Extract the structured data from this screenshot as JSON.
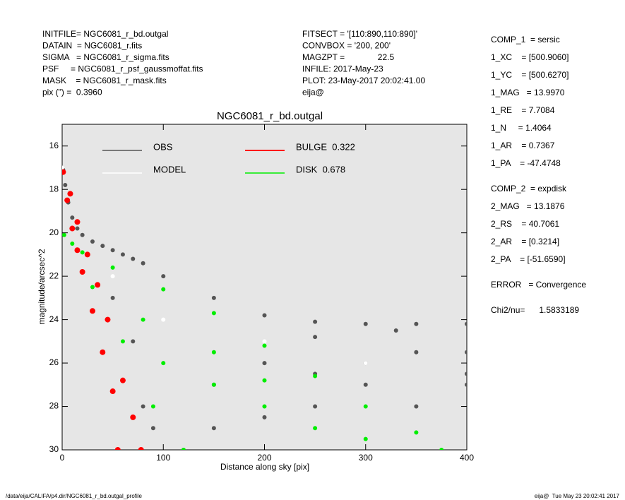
{
  "header": {
    "left": [
      "INITFILE= NGC6081_r_bd.outgal",
      "DATAIN  = NGC6081_r.fits",
      "SIGMA   = NGC6081_r_sigma.fits",
      "PSF     = NGC6081_r_psf_gaussmoffat.fits",
      "MASK    = NGC6081_r_mask.fits",
      "pix (\") =  0.3960"
    ],
    "middle": [
      "FITSECT = '[110:890,110:890]'",
      "CONVBOX = '200, 200'",
      "MAGZPT =              22.5",
      "INFILE: 2017-May-23",
      "PLOT: 23-May-2017 20:02:41.00",
      "eija@"
    ],
    "right": [
      [
        "COMP_1  = sersic",
        "1_XC    = [500.9060]",
        "1_YC    = [500.6270]",
        "1_MAG   = 13.9970",
        "1_RE    = 7.7084",
        "1_N     = 1.4064",
        "1_AR    = 0.7367",
        "1_PA    = -47.4748"
      ],
      [
        "COMP_2  = expdisk",
        "2_MAG   = 13.1876",
        "2_RS    = 40.7061",
        "2_AR    = [0.3214]",
        "2_PA    = [-51.6590]"
      ],
      [
        "ERROR   = Convergence"
      ],
      [
        "Chi2/nu=      1.5833189"
      ]
    ]
  },
  "footer": {
    "left": "/data/eija/CALIFA/p4.dir/NGC6081_r_bd.outgal_profile",
    "right": "eija@  Tue May 23 20:02:41 2017"
  },
  "chart_data": {
    "type": "scatter",
    "title": "NGC6081_r_bd.outgal",
    "x_label": "Distance along sky [pix]",
    "y_label": "magnitude/arcsec^2",
    "xlim": [
      0,
      400
    ],
    "xticks": [
      0,
      100,
      200,
      300,
      400
    ],
    "ylim": [
      30,
      15
    ],
    "yticks": [
      16,
      18,
      20,
      22,
      24,
      26,
      28,
      30
    ],
    "series": [
      {
        "name": "OBS",
        "color": "#555555",
        "x": [
          1,
          3,
          6,
          10,
          15,
          20,
          30,
          40,
          50,
          60,
          70,
          80,
          100,
          150,
          200,
          250,
          300,
          350,
          400,
          50,
          70,
          80,
          90,
          120,
          150,
          200,
          250,
          300,
          350,
          400,
          300,
          350,
          400,
          250,
          200,
          150,
          400,
          250,
          330
        ],
        "values": [
          17.1,
          17.8,
          18.6,
          19.3,
          19.8,
          20.1,
          20.4,
          20.6,
          20.8,
          21.0,
          21.2,
          21.4,
          22.0,
          23.0,
          23.8,
          24.1,
          24.2,
          24.2,
          24.2,
          23,
          25,
          28,
          29,
          30,
          27,
          26,
          26.5,
          26,
          25.5,
          25.5,
          27,
          28,
          27,
          28,
          28.5,
          29,
          26.5,
          24.8,
          24.5
        ]
      },
      {
        "name": "MODEL",
        "color": "#ffffff",
        "x": [
          0,
          50,
          100,
          200,
          300
        ],
        "values": [
          17,
          22,
          24,
          25,
          26
        ]
      },
      {
        "name": "BULGE  0.322",
        "color": "#ff0000",
        "x": [
          1,
          5,
          10,
          15,
          20,
          30,
          40,
          50,
          55,
          78,
          70,
          60,
          45,
          35,
          25,
          15,
          8
        ],
        "values": [
          17.2,
          18.5,
          19.8,
          20.8,
          21.8,
          23.6,
          25.5,
          27.3,
          30,
          30,
          28.5,
          26.8,
          24,
          22.4,
          21,
          19.5,
          18.2
        ]
      },
      {
        "name": "DISK  0.678",
        "color": "#00ee00",
        "x": [
          2,
          10,
          20,
          50,
          100,
          150,
          200,
          250,
          300,
          350,
          375,
          30,
          60,
          90,
          120,
          100,
          150,
          200,
          250,
          80,
          150,
          200,
          300
        ],
        "values": [
          20.1,
          20.5,
          20.9,
          21.6,
          22.6,
          23.7,
          25.2,
          26.6,
          28,
          29.2,
          30,
          22.5,
          25,
          28,
          30,
          26,
          27,
          28,
          29,
          24,
          25.5,
          26.8,
          29.5
        ]
      }
    ]
  }
}
